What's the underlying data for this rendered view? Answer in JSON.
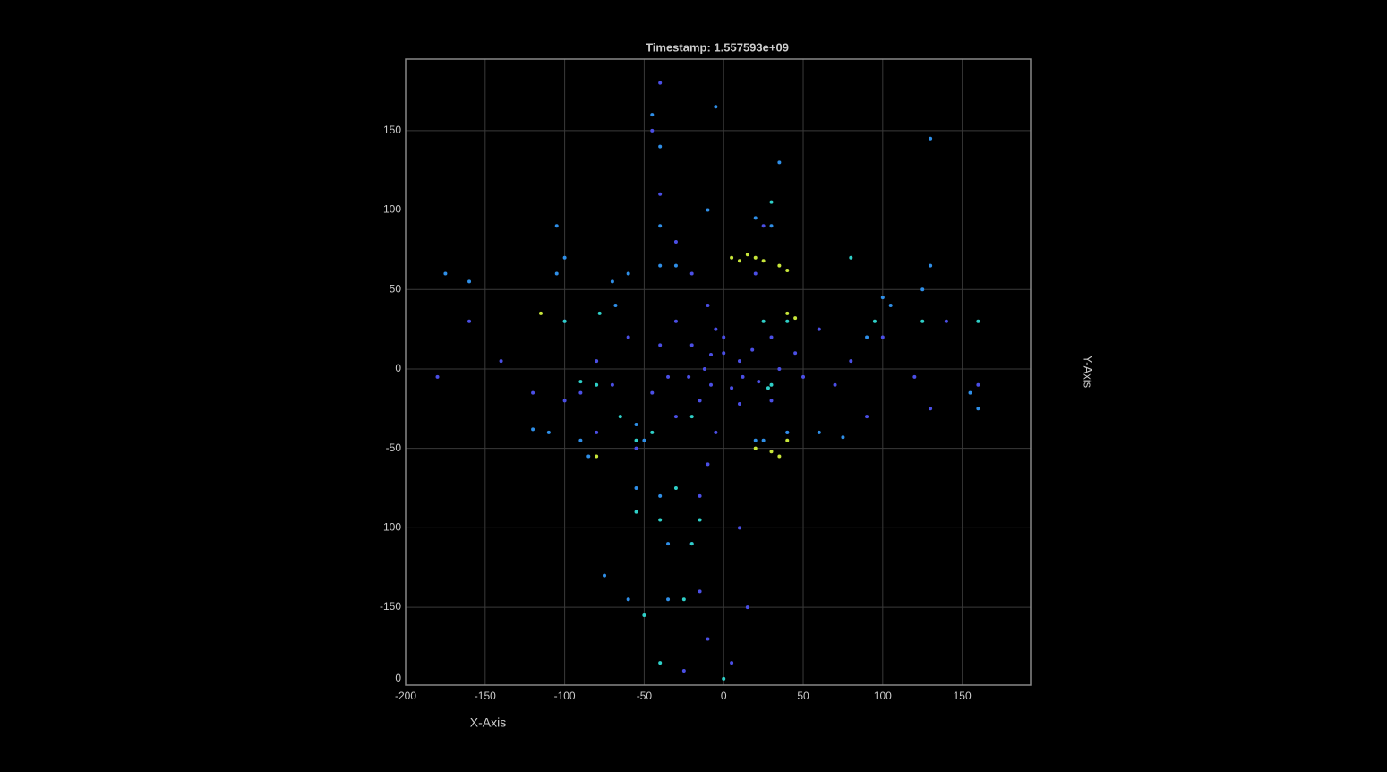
{
  "chart_data": {
    "type": "scatter",
    "title": "Timestamp: 1.557593e+09",
    "x_label": "X-Axis",
    "y_label": "Y-Axis",
    "xlim": [
      -200,
      193
    ],
    "ylim": [
      -199,
      195
    ],
    "xticks": [
      -200,
      -150,
      -100,
      -50,
      0,
      50,
      100,
      150
    ],
    "yticks": [
      -150,
      -100,
      -50,
      0,
      50,
      100,
      150
    ],
    "zticks": [
      0
    ],
    "grid": true,
    "series": [
      {
        "color": "#4b4fe6",
        "x": [
          0,
          10,
          12,
          5,
          -8,
          -12,
          -8,
          0,
          18,
          22,
          10,
          -15,
          -22,
          -20,
          -5,
          30,
          35,
          30,
          -30,
          -35,
          -30,
          -40,
          -45,
          45,
          50,
          -60,
          -70,
          -80,
          -90,
          60,
          70,
          80,
          -100,
          -120,
          -140,
          100,
          120,
          140,
          160,
          -160,
          -180,
          -10,
          -20,
          -30,
          -40,
          -45,
          -40,
          -5,
          -10,
          -15,
          -20,
          -15,
          -10,
          -25,
          10,
          15,
          5,
          20,
          25,
          40,
          -55,
          -80,
          -100,
          90,
          130
        ],
        "values": [
          10,
          5,
          -5,
          -12,
          -10,
          0,
          9,
          20,
          12,
          -8,
          -22,
          -20,
          -5,
          15,
          25,
          20,
          0,
          -20,
          30,
          -5,
          -30,
          15,
          -15,
          10,
          -5,
          20,
          -10,
          5,
          -15,
          25,
          -10,
          5,
          30,
          -15,
          5,
          20,
          -5,
          30,
          -10,
          30,
          -5,
          40,
          60,
          80,
          110,
          150,
          180,
          -40,
          -60,
          -80,
          -110,
          -140,
          -170,
          -190,
          -100,
          -150,
          -185,
          60,
          90,
          -40,
          -50,
          -40,
          -20,
          -30,
          -25
        ]
      },
      {
        "color": "#2f8fe8",
        "x": [
          -105,
          -100,
          -105,
          -70,
          -68,
          -60,
          -40,
          -30,
          -40,
          -40,
          -45,
          -85,
          -90,
          -110,
          -120,
          -55,
          -50,
          -55,
          -40,
          -35,
          -60,
          -35,
          -75,
          20,
          25,
          40,
          60,
          75,
          90,
          100,
          105,
          125,
          130,
          160,
          155,
          -10,
          20,
          30,
          -5,
          35,
          130,
          -175,
          -160
        ],
        "values": [
          90,
          70,
          60,
          55,
          40,
          60,
          65,
          65,
          90,
          140,
          160,
          -55,
          -45,
          -40,
          -38,
          -35,
          -45,
          -75,
          -80,
          -110,
          -145,
          -145,
          -130,
          -45,
          -45,
          -40,
          -40,
          -43,
          20,
          45,
          40,
          50,
          65,
          -25,
          -15,
          100,
          95,
          90,
          165,
          130,
          145,
          60,
          55
        ]
      },
      {
        "color": "#2fd0c8",
        "x": [
          -90,
          -80,
          -78,
          -100,
          -65,
          -55,
          -45,
          -20,
          -30,
          -40,
          -55,
          -15,
          -20,
          30,
          28,
          25,
          30,
          40,
          95,
          125,
          160,
          80,
          -40,
          0,
          -25,
          -50
        ],
        "values": [
          -8,
          -10,
          35,
          30,
          -30,
          -45,
          -40,
          -30,
          -75,
          -95,
          -90,
          -95,
          -110,
          -10,
          -12,
          30,
          105,
          30,
          30,
          30,
          30,
          70,
          -185,
          -195,
          -145,
          -155
        ]
      },
      {
        "color": "#c8e63a",
        "x": [
          5,
          10,
          15,
          20,
          25,
          35,
          40,
          20,
          30,
          35,
          40,
          45,
          40,
          -115,
          -80
        ],
        "values": [
          70,
          68,
          72,
          70,
          68,
          65,
          62,
          -50,
          -52,
          -55,
          -45,
          32,
          35,
          35,
          -55
        ]
      }
    ]
  }
}
